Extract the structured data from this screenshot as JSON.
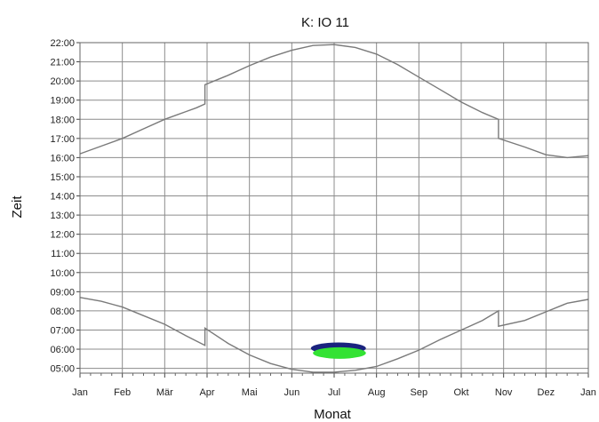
{
  "chart_data": {
    "type": "line",
    "title": "K: IO 11",
    "xlabel": "Monat",
    "ylabel": "Zeit",
    "x_ticks": [
      "Jan",
      "Feb",
      "Mär",
      "Apr",
      "Mai",
      "Jun",
      "Jul",
      "Aug",
      "Sep",
      "Okt",
      "Nov",
      "Dez",
      "Jan"
    ],
    "y_ticks": [
      "05:00",
      "06:00",
      "07:00",
      "08:00",
      "09:00",
      "10:00",
      "11:00",
      "12:00",
      "13:00",
      "14:00",
      "15:00",
      "16:00",
      "17:00",
      "18:00",
      "19:00",
      "20:00",
      "21:00",
      "22:00"
    ],
    "xlim": [
      0,
      12
    ],
    "ylim": [
      4.75,
      22
    ],
    "grid": true,
    "colors": {
      "curve": "#7a7a7a",
      "grid": "#8c8c8c",
      "shadow_dark": "#1a237e",
      "shadow_light": "#33e233"
    },
    "series": [
      {
        "x": [
          0,
          0.5,
          1,
          1.5,
          2,
          2.5,
          2.75,
          2.95,
          2.95,
          3.5,
          4,
          4.5,
          5,
          5.5,
          6,
          6.5,
          7,
          7.5,
          8,
          8.5,
          9,
          9.5,
          9.88,
          9.88,
          10.5,
          11,
          11.5,
          12
        ],
        "y": [
          16.2,
          16.6,
          17.0,
          17.5,
          18.0,
          18.4,
          18.6,
          18.8,
          19.8,
          20.3,
          20.8,
          21.25,
          21.6,
          21.85,
          21.9,
          21.75,
          21.4,
          20.85,
          20.2,
          19.55,
          18.9,
          18.35,
          18.0,
          17.0,
          16.55,
          16.15,
          16.0,
          16.1
        ]
      },
      {
        "x": [
          0,
          0.5,
          1,
          1.5,
          2,
          2.5,
          2.95,
          2.95,
          3.5,
          4,
          4.5,
          5,
          5.5,
          6,
          6.5,
          7,
          7.5,
          8,
          8.5,
          9,
          9.5,
          9.88,
          9.88,
          10.5,
          11,
          11.5,
          12
        ],
        "y": [
          8.7,
          8.5,
          8.2,
          7.75,
          7.3,
          6.7,
          6.2,
          7.1,
          6.3,
          5.7,
          5.25,
          4.95,
          4.8,
          4.8,
          4.9,
          5.1,
          5.5,
          5.95,
          6.5,
          7.0,
          7.5,
          8.0,
          7.2,
          7.5,
          7.95,
          8.4,
          8.6
        ]
      }
    ],
    "shadow_region": {
      "dark": {
        "x_range": [
          5.45,
          6.75
        ],
        "y_range": [
          5.75,
          6.35
        ]
      },
      "light": {
        "x_range": [
          5.5,
          6.75
        ],
        "y_range": [
          5.5,
          6.1
        ]
      }
    }
  }
}
